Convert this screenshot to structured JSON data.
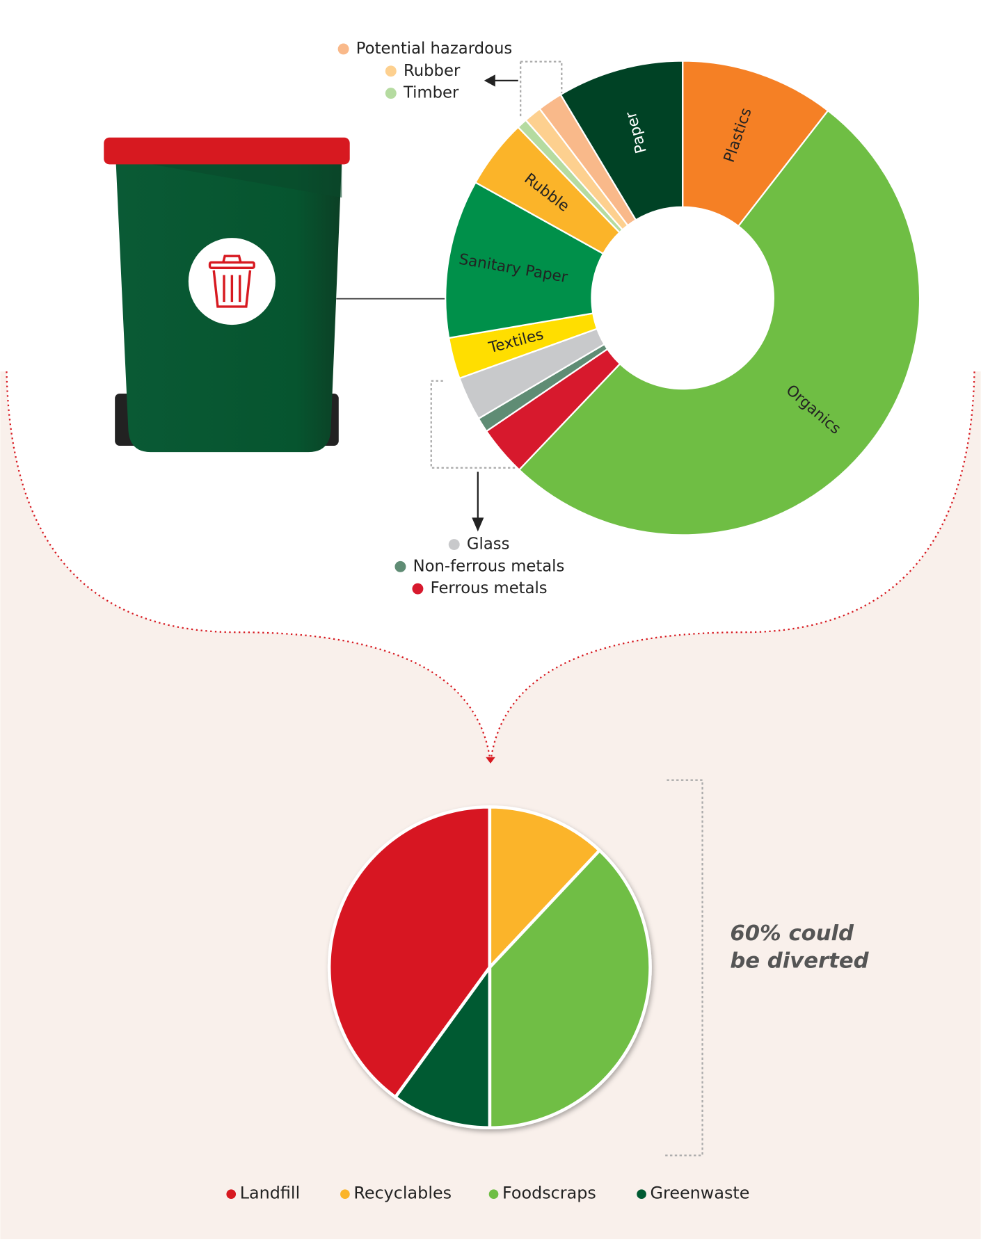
{
  "chart_data": [
    {
      "type": "donut",
      "categories": [
        "Plastics",
        "Organics",
        "Ferrous metals",
        "Non-ferrous metals",
        "Glass",
        "Textiles",
        "Sanitary Paper",
        "Rubble",
        "Timber",
        "Rubber",
        "Potential hazardous",
        "Paper"
      ],
      "values": [
        10.5,
        51.6,
        3.4,
        1,
        3,
        2.8,
        10.8,
        4.7,
        0.7,
        1.2,
        1.7,
        8.6
      ],
      "colors": [
        "#f58025",
        "#6fbe44",
        "#d7192d",
        "#5f8c74",
        "#c8c9cb",
        "#ffde00",
        "#00904a",
        "#fbb429",
        "#b5dba0",
        "#fdd08f",
        "#f9b98a",
        "#004225"
      ]
    },
    {
      "type": "pie",
      "categories": [
        "Landfill",
        "Recyclables",
        "Foodscraps",
        "Greenwaste"
      ],
      "values": [
        40,
        12,
        38,
        10
      ],
      "colors": [
        "#d71920",
        "#fbb429",
        "#6fbe44",
        "#005a32"
      ],
      "annotation": [
        "60% could",
        "be diverted"
      ]
    }
  ]
}
